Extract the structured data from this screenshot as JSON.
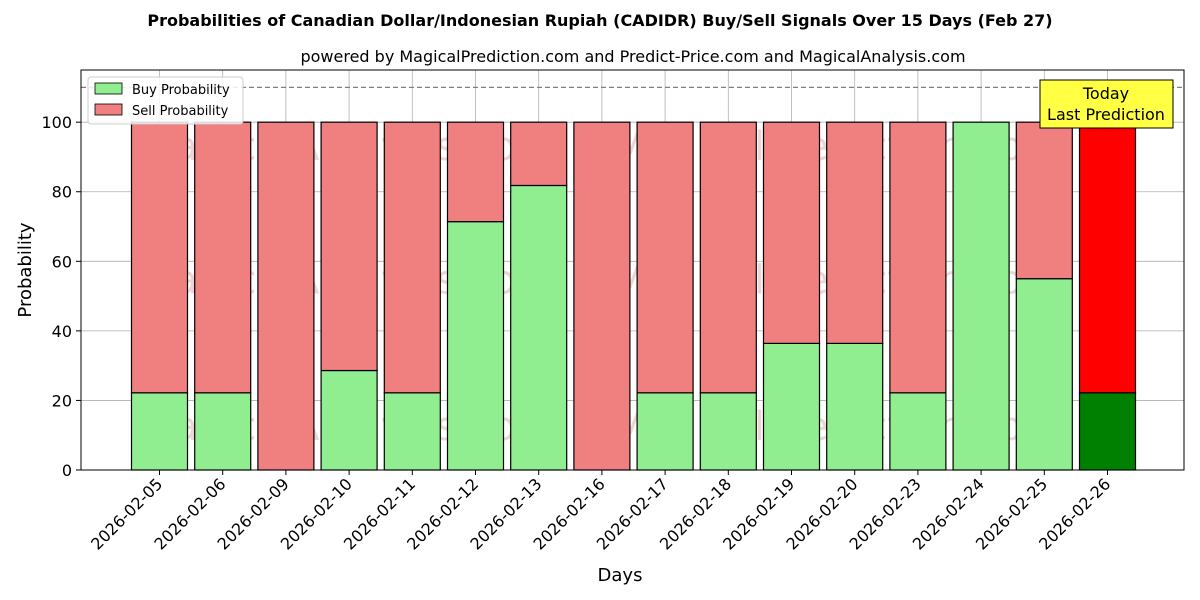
{
  "chart_data": {
    "type": "bar",
    "stacked": true,
    "title": "Probabilities of Canadian Dollar/Indonesian Rupiah (CADIDR) Buy/Sell Signals Over 15 Days (Feb 27)",
    "subtitle": "powered by MagicalPrediction.com and Predict-Price.com and MagicalAnalysis.com",
    "xlabel": "Days",
    "ylabel": "Probability",
    "ylim": [
      0,
      115
    ],
    "yticks": [
      0,
      20,
      40,
      60,
      80,
      100
    ],
    "grid": true,
    "legend_position": "top-left",
    "threshold_line": 110,
    "categories": [
      "2026-02-05",
      "2026-02-06",
      "2026-02-09",
      "2026-02-10",
      "2026-02-11",
      "2026-02-12",
      "2026-02-13",
      "2026-02-16",
      "2026-02-17",
      "2026-02-18",
      "2026-02-19",
      "2026-02-20",
      "2026-02-23",
      "2026-02-24",
      "2026-02-25",
      "2026-02-26"
    ],
    "series": [
      {
        "name": "Buy Probability",
        "color": "#90ee90",
        "values": [
          22.2,
          22.2,
          0,
          28.6,
          22.2,
          71.4,
          81.8,
          0,
          22.2,
          22.2,
          36.4,
          36.4,
          22.2,
          100,
          55.0,
          22.2
        ]
      },
      {
        "name": "Sell Probability",
        "color": "#f08080",
        "values": [
          77.8,
          77.8,
          100,
          71.4,
          77.8,
          28.6,
          18.2,
          100,
          77.8,
          77.8,
          63.6,
          63.6,
          77.8,
          0,
          45.0,
          77.8
        ]
      }
    ],
    "highlight": {
      "index": 15,
      "buy_color": "#008000",
      "sell_color": "#ff0000"
    },
    "annotation": {
      "lines": [
        "Today",
        "Last Prediction"
      ],
      "color": "#ffff44"
    },
    "watermarks": [
      "MagicalAnalysis.com",
      "MagicalPrediction.com"
    ]
  }
}
